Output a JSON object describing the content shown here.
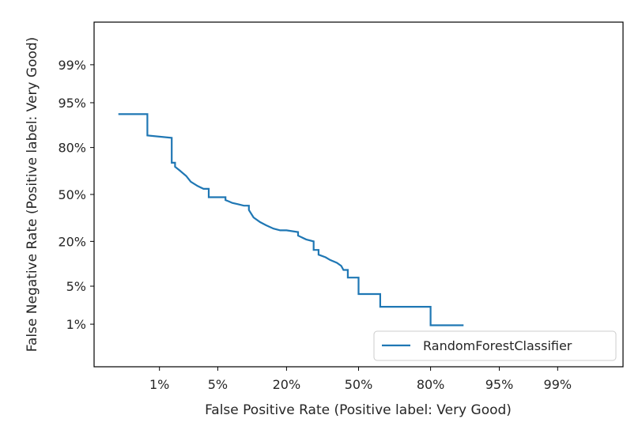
{
  "colors": {
    "series": "#1f77b4",
    "axes": "#000000",
    "text": "#262626",
    "legend_border": "#cccccc",
    "background": "#ffffff"
  },
  "chart_data": {
    "type": "line",
    "title": "",
    "xlabel": "False Positive Rate (Positive label: Very Good)",
    "ylabel": "False Negative Rate (Positive label: Very Good)",
    "scale": "normal-deviate (probit)",
    "xlim": [
      0.001,
      0.999
    ],
    "ylim": [
      0.001,
      0.999
    ],
    "x_ticks": [
      0.01,
      0.05,
      0.2,
      0.5,
      0.8,
      0.95,
      0.99
    ],
    "x_tick_labels": [
      "1%",
      "5%",
      "20%",
      "50%",
      "80%",
      "95%",
      "99%"
    ],
    "y_ticks": [
      0.01,
      0.05,
      0.2,
      0.5,
      0.8,
      0.95,
      0.99
    ],
    "y_tick_labels": [
      "1%",
      "5%",
      "20%",
      "50%",
      "80%",
      "95%",
      "99%"
    ],
    "grid": false,
    "legend": {
      "location": "lower right",
      "entries": [
        "RandomForestClassifier"
      ]
    },
    "series": [
      {
        "name": "RandomForestClassifier",
        "drawstyle": "steps",
        "x": [
          0.0025,
          0.0068,
          0.0068,
          0.0145,
          0.0145,
          0.016,
          0.016,
          0.018,
          0.022,
          0.025,
          0.03,
          0.035,
          0.04,
          0.04,
          0.06,
          0.06,
          0.065,
          0.07,
          0.08,
          0.09,
          0.1,
          0.1,
          0.11,
          0.125,
          0.14,
          0.16,
          0.18,
          0.2,
          0.24,
          0.24,
          0.27,
          0.3,
          0.3,
          0.32,
          0.32,
          0.35,
          0.37,
          0.4,
          0.42,
          0.43,
          0.45,
          0.45,
          0.5,
          0.5,
          0.6,
          0.6,
          0.8,
          0.8,
          0.89
        ],
        "y": [
          0.925,
          0.925,
          0.855,
          0.845,
          0.715,
          0.715,
          0.69,
          0.67,
          0.63,
          0.59,
          0.56,
          0.54,
          0.54,
          0.48,
          0.48,
          0.46,
          0.45,
          0.44,
          0.43,
          0.42,
          0.42,
          0.39,
          0.34,
          0.31,
          0.29,
          0.27,
          0.26,
          0.26,
          0.25,
          0.23,
          0.21,
          0.2,
          0.16,
          0.16,
          0.14,
          0.13,
          0.12,
          0.11,
          0.1,
          0.088,
          0.088,
          0.068,
          0.068,
          0.037,
          0.037,
          0.022,
          0.022,
          0.0095,
          0.0095
        ]
      }
    ]
  }
}
